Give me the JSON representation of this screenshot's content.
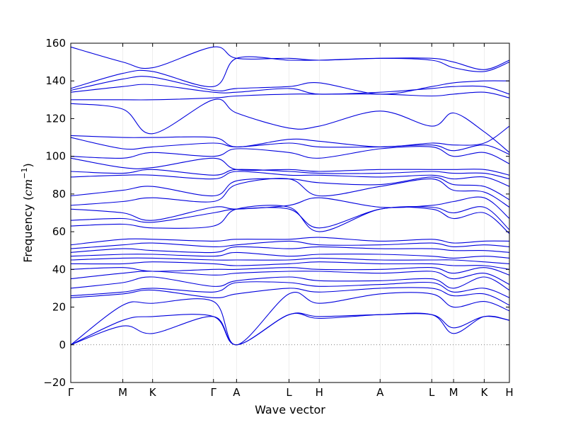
{
  "chart_data": {
    "type": "line",
    "xlabel": "Wave vector",
    "ylabel": "Frequency (",
    "ylabel_unit": "cm",
    "ylabel_exp": "−1",
    "ylabel_close": ")",
    "ylim": [
      -20,
      160
    ],
    "yticks": [
      -20,
      0,
      20,
      40,
      60,
      80,
      100,
      120,
      140,
      160
    ],
    "xlim": [
      0,
      10.45
    ],
    "kpoints": [
      {
        "label": "Γ",
        "x": 0.0
      },
      {
        "label": "M",
        "x": 1.24
      },
      {
        "label": "K",
        "x": 1.95
      },
      {
        "label": "Γ",
        "x": 3.4
      },
      {
        "label": "A",
        "x": 3.95
      },
      {
        "label": "L",
        "x": 5.2
      },
      {
        "label": "H",
        "x": 5.92
      },
      {
        "label": "A",
        "x": 7.37
      },
      {
        "label": "L",
        "x": 8.6
      },
      {
        "label": "M",
        "x": 9.12
      },
      {
        "label": "K",
        "x": 9.85
      },
      {
        "label": "H",
        "x": 10.45
      }
    ],
    "zero_line": true,
    "line_color": "#0000dd",
    "series": [
      {
        "y": [
          0,
          10,
          6,
          15,
          0,
          16,
          14,
          16,
          16,
          6,
          15,
          13
        ]
      },
      {
        "y": [
          0,
          13,
          15,
          15,
          0,
          16,
          15,
          16,
          16,
          9,
          15,
          13
        ]
      },
      {
        "y": [
          0,
          21,
          22,
          23,
          0,
          27,
          22,
          27,
          27,
          20,
          23,
          18
        ]
      },
      {
        "y": [
          25,
          27,
          29,
          25,
          27,
          30,
          28,
          30,
          30,
          26,
          27,
          21
        ]
      },
      {
        "y": [
          26,
          28,
          30,
          28,
          33,
          33,
          31,
          32,
          33,
          28,
          30,
          25
        ]
      },
      {
        "y": [
          30,
          33,
          36,
          31,
          34,
          36,
          34,
          34,
          35,
          30,
          36,
          29
        ]
      },
      {
        "y": [
          35,
          38,
          39,
          37,
          38,
          39,
          39,
          38,
          39,
          35,
          38,
          32
        ]
      },
      {
        "y": [
          40,
          41,
          39,
          40,
          40,
          41,
          40,
          40,
          41,
          38,
          41,
          37
        ]
      },
      {
        "y": [
          43,
          43,
          44,
          43,
          42,
          43,
          44,
          43,
          43,
          42,
          42,
          40
        ]
      },
      {
        "y": [
          45,
          46,
          46,
          45,
          45,
          45,
          46,
          45,
          45,
          45,
          44,
          43
        ]
      },
      {
        "y": [
          47,
          48,
          48,
          47,
          49,
          47,
          48,
          48,
          47,
          46,
          47,
          46
        ]
      },
      {
        "y": [
          49,
          51,
          50,
          49,
          52,
          51,
          52,
          51,
          51,
          50,
          50,
          49
        ]
      },
      {
        "y": [
          51,
          53,
          54,
          52,
          53,
          55,
          53,
          53,
          54,
          52,
          53,
          52
        ]
      },
      {
        "y": [
          53,
          56,
          56,
          55,
          56,
          56,
          57,
          55,
          56,
          54,
          55,
          55
        ]
      },
      {
        "y": [
          63,
          64,
          62,
          63,
          72,
          73,
          60,
          72,
          72,
          67,
          70,
          59
        ]
      },
      {
        "y": [
          66,
          67,
          65,
          70,
          72,
          72,
          62,
          72,
          73,
          70,
          73,
          61
        ]
      },
      {
        "y": [
          72,
          70,
          66,
          73,
          72,
          74,
          78,
          73,
          74,
          76,
          78,
          67
        ]
      },
      {
        "y": [
          74,
          76,
          78,
          76,
          85,
          88,
          79,
          84,
          88,
          82,
          81,
          73
        ]
      },
      {
        "y": [
          79,
          82,
          84,
          79,
          87,
          88,
          86,
          85,
          89,
          85,
          84,
          77
        ]
      },
      {
        "y": [
          89,
          90,
          90,
          88,
          92,
          90,
          90,
          89,
          90,
          88,
          89,
          84
        ]
      },
      {
        "y": [
          92,
          91,
          93,
          90,
          93,
          92,
          91,
          91,
          92,
          91,
          91,
          88
        ]
      },
      {
        "y": [
          99,
          94,
          94,
          99,
          93,
          93,
          92,
          93,
          93,
          93,
          93,
          90
        ]
      },
      {
        "y": [
          100,
          99,
          102,
          100,
          104,
          102,
          99,
          104,
          105,
          100,
          102,
          96
        ]
      },
      {
        "y": [
          110,
          104,
          105,
          107,
          105,
          107,
          105,
          105,
          106,
          103,
          106,
          101
        ]
      },
      {
        "y": [
          111,
          110,
          110,
          110,
          105,
          109,
          108,
          105,
          107,
          106,
          107,
          116
        ]
      },
      {
        "y": [
          128,
          125,
          112,
          130,
          123,
          115,
          116,
          124,
          116,
          123,
          113,
          102
        ]
      },
      {
        "y": [
          130,
          130,
          130,
          131,
          132,
          133,
          133,
          133,
          132,
          133,
          134,
          131
        ]
      },
      {
        "y": [
          134,
          137,
          138,
          134,
          134,
          136,
          133,
          134,
          136,
          137,
          137,
          133
        ]
      },
      {
        "y": [
          135,
          141,
          142,
          135,
          136,
          137,
          139,
          133,
          137,
          139,
          140,
          140
        ]
      },
      {
        "y": [
          136,
          144,
          145,
          137,
          152,
          151,
          151,
          152,
          151,
          147,
          145,
          150
        ]
      },
      {
        "y": [
          158,
          150,
          147,
          158,
          152,
          152,
          151,
          152,
          152,
          150,
          146,
          151
        ]
      }
    ]
  }
}
